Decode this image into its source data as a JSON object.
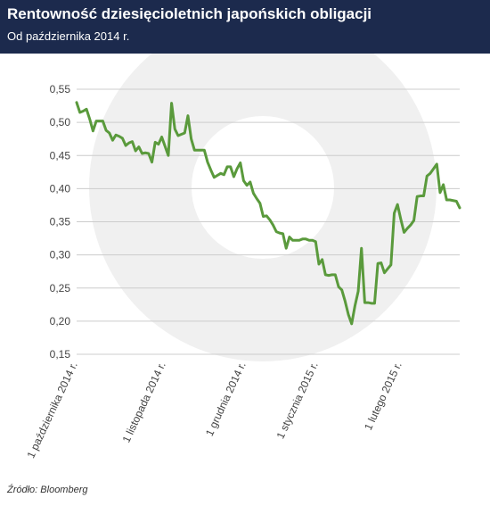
{
  "header": {
    "title": "Rentowność dziesięcioletnich japońskich obligacji",
    "subtitle": "Od października 2014 r."
  },
  "source": "Źródło: Bloomberg",
  "colors": {
    "header_bg": "#1c2a4d",
    "line": "#5a9a3c",
    "grid": "#cccccc",
    "watermark": "#f0f0f0"
  },
  "chart_data": {
    "type": "line",
    "title": "Rentowność dziesięcioletnich japońskich obligacji",
    "xlabel": "",
    "ylabel": "",
    "ylim": [
      0.15,
      0.55
    ],
    "yticks": [
      "0,15",
      "0,20",
      "0,25",
      "0,30",
      "0,35",
      "0,40",
      "0,45",
      "0,50",
      "0,55"
    ],
    "xticks": [
      "1 października 2014 r.",
      "1 listopada 2014 r.",
      "1 grudnia 2014 r.",
      "1 stycznia 2015 r.",
      "1 lutego 2015 r."
    ],
    "grid": true,
    "series": [
      {
        "name": "",
        "values": [
          0.53,
          0.515,
          0.517,
          0.52,
          0.505,
          0.487,
          0.502,
          0.502,
          0.502,
          0.488,
          0.484,
          0.473,
          0.481,
          0.479,
          0.476,
          0.465,
          0.469,
          0.471,
          0.457,
          0.463,
          0.453,
          0.454,
          0.453,
          0.44,
          0.47,
          0.467,
          0.478,
          0.464,
          0.45,
          0.529,
          0.49,
          0.48,
          0.482,
          0.484,
          0.51,
          0.475,
          0.458,
          0.458,
          0.458,
          0.458,
          0.44,
          0.428,
          0.417,
          0.42,
          0.423,
          0.421,
          0.433,
          0.433,
          0.418,
          0.43,
          0.439,
          0.412,
          0.405,
          0.41,
          0.393,
          0.385,
          0.378,
          0.358,
          0.359,
          0.353,
          0.345,
          0.335,
          0.333,
          0.332,
          0.31,
          0.327,
          0.322,
          0.322,
          0.322,
          0.324,
          0.324,
          0.322,
          0.322,
          0.32,
          0.286,
          0.293,
          0.27,
          0.269,
          0.27,
          0.27,
          0.252,
          0.247,
          0.23,
          0.21,
          0.196,
          0.223,
          0.245,
          0.31,
          0.228,
          0.228,
          0.227,
          0.227,
          0.287,
          0.288,
          0.273,
          0.279,
          0.285,
          0.363,
          0.376,
          0.354,
          0.334,
          0.34,
          0.345,
          0.352,
          0.388,
          0.389,
          0.389,
          0.419,
          0.423,
          0.43,
          0.437,
          0.394,
          0.406,
          0.383,
          0.383,
          0.382,
          0.381,
          0.371
        ]
      }
    ]
  }
}
